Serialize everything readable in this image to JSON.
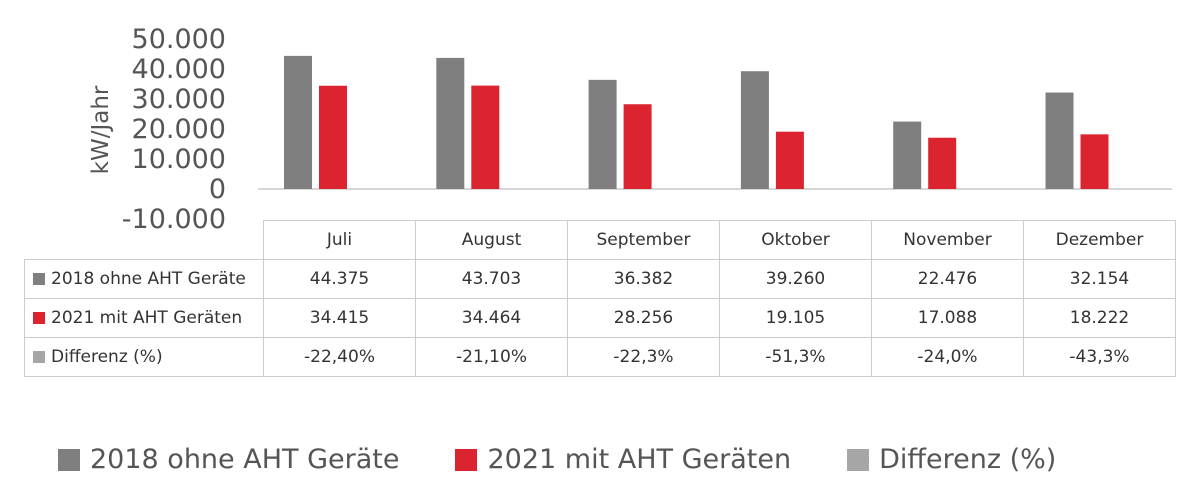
{
  "chart_data": {
    "type": "bar",
    "ylabel": "kW/Jahr",
    "ylim": [
      -10000,
      50000
    ],
    "yticks": [
      -10000,
      0,
      10000,
      20000,
      30000,
      40000,
      50000
    ],
    "ytick_labels": [
      "-10.000",
      "0",
      "10.000",
      "20.000",
      "30.000",
      "40.000",
      "50.000"
    ],
    "categories": [
      "Juli",
      "August",
      "September",
      "Oktober",
      "November",
      "Dezember"
    ],
    "series": [
      {
        "name": "2018 ohne AHT Geräte",
        "color": "#7f7f7f",
        "values": [
          44375,
          43703,
          36382,
          39260,
          22476,
          32154
        ],
        "labels": [
          "44.375",
          "43.703",
          "36.382",
          "39.260",
          "22.476",
          "32.154"
        ]
      },
      {
        "name": "2021 mit AHT Geräten",
        "color": "#dc2430",
        "values": [
          34415,
          34464,
          28256,
          19105,
          17088,
          18222
        ],
        "labels": [
          "34.415",
          "34.464",
          "28.256",
          "19.105",
          "17.088",
          "18.222"
        ]
      },
      {
        "name": "Differenz (%)",
        "color": "#a6a6a6",
        "labels": [
          "-22,40%",
          "-21,10%",
          "-22,3%",
          "-51,3%",
          "-24,0%",
          "-43,3%"
        ]
      }
    ],
    "grid": false,
    "legend": "bottom"
  }
}
